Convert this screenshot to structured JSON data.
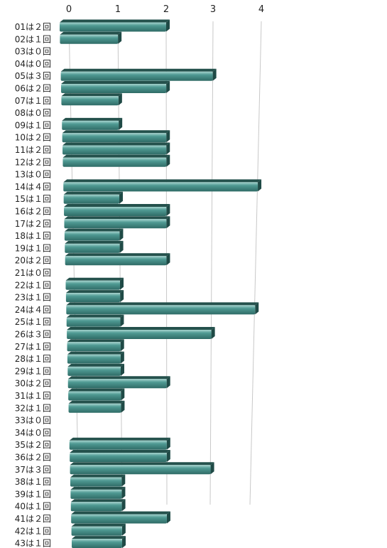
{
  "chart_data": {
    "type": "bar",
    "orientation": "horizontal",
    "style": "3d",
    "bar_color": "#3f8a84",
    "bar_shadow_color": "#24514c",
    "grid": true,
    "xlim": [
      0,
      4
    ],
    "ticks": [
      "0",
      "1",
      "2",
      "3",
      "4"
    ],
    "categories": [
      "01は２回",
      "02は１回",
      "03は０回",
      "04は０回",
      "05は３回",
      "06は２回",
      "07は１回",
      "08は０回",
      "09は１回",
      "10は２回",
      "11は２回",
      "12は２回",
      "13は０回",
      "14は４回",
      "15は１回",
      "16は２回",
      "17は２回",
      "18は１回",
      "19は１回",
      "20は２回",
      "21は０回",
      "22は１回",
      "23は１回",
      "24は４回",
      "25は１回",
      "26は３回",
      "27は１回",
      "28は１回",
      "29は１回",
      "30は２回",
      "31は１回",
      "32は１回",
      "33は０回",
      "34は０回",
      "35は２回",
      "36は２回",
      "37は３回",
      "38は１回",
      "39は１回",
      "40は１回",
      "41は２回",
      "42は１回",
      "43は１回"
    ],
    "values": [
      2,
      1,
      0,
      0,
      3,
      2,
      1,
      0,
      1,
      2,
      2,
      2,
      0,
      4,
      1,
      2,
      2,
      1,
      1,
      2,
      0,
      1,
      1,
      4,
      1,
      3,
      1,
      1,
      1,
      2,
      1,
      1,
      0,
      0,
      2,
      2,
      3,
      1,
      1,
      1,
      2,
      1,
      1
    ]
  }
}
